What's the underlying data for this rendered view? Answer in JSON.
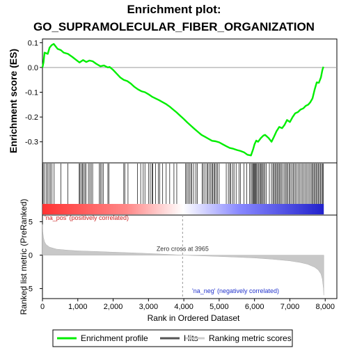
{
  "title_line1": "Enrichment plot:",
  "title_line2": "GO_SUPRAMOLECULAR_FIBER_ORGANIZATION",
  "chart_data": {
    "type": "line",
    "n_genes": 7960,
    "zero_cross": 3965,
    "enrichment": {
      "ylabel": "Enrichment score (ES)",
      "ylim": [
        -0.385,
        0.115
      ],
      "yticks": [
        -0.3,
        -0.2,
        -0.1,
        0.0,
        0.1
      ],
      "ytick_labels": [
        "-0.3",
        "-0.2",
        "-0.1",
        "0.0",
        "0.1"
      ],
      "color": "#00ee00",
      "points": [
        [
          0,
          0.0
        ],
        [
          30,
          0.02
        ],
        [
          60,
          0.06
        ],
        [
          150,
          0.055
        ],
        [
          200,
          0.08
        ],
        [
          260,
          0.09
        ],
        [
          320,
          0.095
        ],
        [
          430,
          0.075
        ],
        [
          520,
          0.07
        ],
        [
          600,
          0.06
        ],
        [
          720,
          0.055
        ],
        [
          850,
          0.042
        ],
        [
          960,
          0.03
        ],
        [
          1050,
          0.02
        ],
        [
          1150,
          0.03
        ],
        [
          1240,
          0.022
        ],
        [
          1330,
          0.028
        ],
        [
          1420,
          0.025
        ],
        [
          1520,
          0.015
        ],
        [
          1640,
          0.005
        ],
        [
          1740,
          0.008
        ],
        [
          1850,
          0.0
        ],
        [
          1900,
          0.002
        ],
        [
          2000,
          -0.01
        ],
        [
          2100,
          -0.025
        ],
        [
          2200,
          -0.04
        ],
        [
          2300,
          -0.05
        ],
        [
          2400,
          -0.055
        ],
        [
          2500,
          -0.065
        ],
        [
          2600,
          -0.078
        ],
        [
          2700,
          -0.088
        ],
        [
          2800,
          -0.096
        ],
        [
          2900,
          -0.1
        ],
        [
          3000,
          -0.108
        ],
        [
          3100,
          -0.118
        ],
        [
          3200,
          -0.125
        ],
        [
          3300,
          -0.132
        ],
        [
          3400,
          -0.14
        ],
        [
          3500,
          -0.148
        ],
        [
          3600,
          -0.158
        ],
        [
          3700,
          -0.17
        ],
        [
          3800,
          -0.182
        ],
        [
          3900,
          -0.195
        ],
        [
          4000,
          -0.208
        ],
        [
          4100,
          -0.222
        ],
        [
          4200,
          -0.235
        ],
        [
          4300,
          -0.248
        ],
        [
          4400,
          -0.26
        ],
        [
          4500,
          -0.272
        ],
        [
          4600,
          -0.28
        ],
        [
          4700,
          -0.288
        ],
        [
          4800,
          -0.296
        ],
        [
          4900,
          -0.298
        ],
        [
          5000,
          -0.302
        ],
        [
          5100,
          -0.31
        ],
        [
          5200,
          -0.318
        ],
        [
          5300,
          -0.325
        ],
        [
          5400,
          -0.328
        ],
        [
          5500,
          -0.333
        ],
        [
          5600,
          -0.337
        ],
        [
          5700,
          -0.342
        ],
        [
          5800,
          -0.352
        ],
        [
          5900,
          -0.355
        ],
        [
          5960,
          -0.33
        ],
        [
          6000,
          -0.31
        ],
        [
          6050,
          -0.295
        ],
        [
          6100,
          -0.3
        ],
        [
          6180,
          -0.285
        ],
        [
          6250,
          -0.275
        ],
        [
          6300,
          -0.272
        ],
        [
          6400,
          -0.285
        ],
        [
          6480,
          -0.3
        ],
        [
          6550,
          -0.28
        ],
        [
          6620,
          -0.258
        ],
        [
          6700,
          -0.24
        ],
        [
          6780,
          -0.245
        ],
        [
          6850,
          -0.232
        ],
        [
          6920,
          -0.212
        ],
        [
          7000,
          -0.22
        ],
        [
          7080,
          -0.2
        ],
        [
          7150,
          -0.185
        ],
        [
          7230,
          -0.18
        ],
        [
          7300,
          -0.17
        ],
        [
          7380,
          -0.165
        ],
        [
          7450,
          -0.155
        ],
        [
          7520,
          -0.15
        ],
        [
          7580,
          -0.14
        ],
        [
          7640,
          -0.125
        ],
        [
          7700,
          -0.09
        ],
        [
          7760,
          -0.06
        ],
        [
          7820,
          -0.062
        ],
        [
          7880,
          -0.04
        ],
        [
          7920,
          -0.01
        ],
        [
          7950,
          0.003
        ]
      ]
    },
    "hits": {
      "positions": [
        20,
        60,
        110,
        150,
        190,
        230,
        270,
        330,
        520,
        720,
        1040,
        1060,
        1100,
        1130,
        1160,
        1200,
        1230,
        1300,
        1340,
        1380,
        1420,
        1610,
        1640,
        1680,
        1720,
        1850,
        1880,
        2300,
        2330,
        2420,
        2690,
        2780,
        2850,
        2900,
        3000,
        3050,
        3100,
        3120,
        3200,
        3280,
        3320,
        3400,
        3500,
        3600,
        3720,
        3800,
        4050,
        4080,
        4120,
        4160,
        4200,
        4230,
        4280,
        4340,
        4380,
        4520,
        4550,
        4600,
        4650,
        4680,
        4720,
        4760,
        4800,
        4820,
        4860,
        4880,
        4920,
        4950,
        5000,
        5200,
        5260,
        5300,
        5330,
        5380,
        5420,
        5480,
        5560,
        5600,
        5700,
        5780,
        5860,
        5900,
        5930,
        5960,
        5980,
        6000,
        6020,
        6040,
        6060,
        6090,
        6120,
        6150,
        6180,
        6200,
        6230,
        6260,
        6290,
        6330,
        6420,
        6480,
        6520,
        6550,
        6580,
        6610,
        6640,
        6670,
        6700,
        6730,
        6760,
        6800,
        6840,
        6880,
        6910,
        6940,
        6980,
        7010,
        7050,
        7090,
        7120,
        7160,
        7200,
        7240,
        7280,
        7320,
        7360,
        7400,
        7440,
        7480,
        7520,
        7560,
        7600,
        7630,
        7660,
        7690,
        7720,
        7750,
        7780,
        7810,
        7840,
        7870,
        7900,
        7930,
        7950
      ]
    },
    "ranked": {
      "ylabel": "Ranked list metric (PreRanked)",
      "xlabel": "Rank in Ordered Dataset",
      "ylim": [
        -6.5,
        6.0
      ],
      "yticks": [
        -5,
        0,
        5
      ],
      "ytick_labels": [
        "-5",
        "0",
        "5"
      ],
      "xlim": [
        0,
        8330
      ],
      "xticks": [
        0,
        1000,
        2000,
        3000,
        4000,
        5000,
        6000,
        7000,
        8000
      ],
      "xtick_labels": [
        "0",
        "1,000",
        "2,000",
        "3,000",
        "4,000",
        "5,000",
        "6,000",
        "7,000",
        "8,000"
      ],
      "curve": [
        [
          0,
          4.6
        ],
        [
          10,
          3.5
        ],
        [
          30,
          2.6
        ],
        [
          60,
          2.0
        ],
        [
          100,
          1.6
        ],
        [
          200,
          1.2
        ],
        [
          400,
          0.9
        ],
        [
          700,
          0.75
        ],
        [
          1000,
          0.65
        ],
        [
          1500,
          0.55
        ],
        [
          2000,
          0.45
        ],
        [
          2500,
          0.35
        ],
        [
          3000,
          0.25
        ],
        [
          3500,
          0.13
        ],
        [
          3965,
          0.0
        ],
        [
          4500,
          -0.1
        ],
        [
          5000,
          -0.2
        ],
        [
          5500,
          -0.3
        ],
        [
          6000,
          -0.42
        ],
        [
          6500,
          -0.6
        ],
        [
          7000,
          -0.85
        ],
        [
          7300,
          -1.1
        ],
        [
          7500,
          -1.35
        ],
        [
          7700,
          -1.8
        ],
        [
          7800,
          -2.2
        ],
        [
          7880,
          -2.8
        ],
        [
          7920,
          -3.6
        ],
        [
          7950,
          -5.0
        ],
        [
          7960,
          -6.0
        ]
      ],
      "zero_cross_label": "Zero cross at 3965",
      "pos_label": "'na_pos' (positively correlated)",
      "neg_label": "'na_neg' (negatively correlated)",
      "pos_color": "#dd2222",
      "neg_color": "#2233cc"
    }
  },
  "legend": {
    "items": [
      {
        "label": "Enrichment profile",
        "color": "#00ee00"
      },
      {
        "label": "Hits",
        "color": "#555555"
      },
      {
        "label": "Ranking metric scores",
        "color": "#cccccc"
      }
    ]
  }
}
